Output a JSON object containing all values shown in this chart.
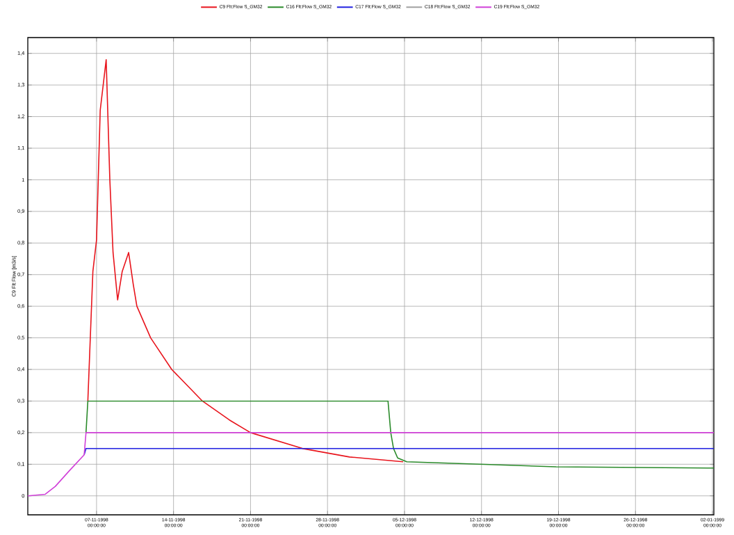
{
  "chart_data": {
    "type": "line",
    "ylabel": "C9 Flt:Flow [m3/s]",
    "xlim": [
      "1998-10-31T18:00",
      "1999-01-02T03:00"
    ],
    "xticks": [
      {
        "value": "1998-11-07",
        "label": "07-11-1998 00:00:00"
      },
      {
        "value": "1998-11-14",
        "label": "14-11-1998 00:00:00"
      },
      {
        "value": "1998-11-21",
        "label": "21-11-1998 00:00:00"
      },
      {
        "value": "1998-11-28",
        "label": "28-11-1998 00:00:00"
      },
      {
        "value": "1998-12-05",
        "label": "05-12-1998 00:00:00"
      },
      {
        "value": "1998-12-12",
        "label": "12-12-1998 00:00:00"
      },
      {
        "value": "1998-12-19",
        "label": "19-12-1998 00:00:00"
      },
      {
        "value": "1998-12-26",
        "label": "26-12-1998 00:00:00"
      },
      {
        "value": "1999-01-02",
        "label": "02-01-1999 00:00:00"
      }
    ],
    "ylim": [
      -0.06,
      1.45
    ],
    "yticks": [
      0,
      {
        "value": 0.1,
        "label": "0,1"
      },
      {
        "value": 0.2,
        "label": "0,2"
      },
      {
        "value": 0.3,
        "label": "0,3"
      },
      {
        "value": 0.4,
        "label": "0,4"
      },
      {
        "value": 0.5,
        "label": "0,5"
      },
      {
        "value": 0.6,
        "label": "0,6"
      },
      {
        "value": 0.7,
        "label": "0,7"
      },
      {
        "value": 0.8,
        "label": "0,8"
      },
      {
        "value": 0.9,
        "label": "0,9"
      },
      1,
      {
        "value": 1.1,
        "label": "1,1"
      },
      {
        "value": 1.2,
        "label": "1,2"
      },
      {
        "value": 1.3,
        "label": "1,3"
      },
      {
        "value": 1.4,
        "label": "1,4"
      }
    ],
    "grid": true,
    "legend": "top",
    "series": [
      {
        "name": "C9 Flt:Flow S_GM32",
        "color": "#e8141c",
        "x": [
          "1998-11-06T05:00",
          "1998-11-06T16:00",
          "1998-11-07T00:00",
          "1998-11-07T08:00",
          "1998-11-07T21:00",
          "1998-11-08T05:00",
          "1998-11-08T12:00",
          "1998-11-08T22:00",
          "1998-11-09T08:00",
          "1998-11-09T22:00",
          "1998-11-10T08:00",
          "1998-11-10T16:00",
          "1998-11-11T22:00",
          "1998-11-13T20:00",
          "1998-11-16T15:00",
          "1998-11-19T02:00",
          "1998-11-21T00:00",
          "1998-11-25T17:00",
          "1998-11-30T00:00",
          "1998-12-04T21:00"
        ],
        "values": [
          0.3,
          0.71,
          0.81,
          1.22,
          1.38,
          1.0,
          0.77,
          0.62,
          0.71,
          0.77,
          0.67,
          0.6,
          0.5,
          0.4,
          0.3,
          0.24,
          0.2,
          0.15,
          0.123,
          0.108
        ]
      },
      {
        "name": "C16 Flt:Flow S_GM32",
        "color": "#2a8a2a",
        "x": [
          "1998-11-06T01:00",
          "1998-11-06T05:00",
          "1998-12-03T12:00",
          "1998-12-03T18:00",
          "1998-12-04T00:00",
          "1998-12-04T09:00",
          "1998-12-05T05:00",
          "1998-12-11T20:00",
          "1998-12-18T19:00",
          "1999-01-02T03:00"
        ],
        "values": [
          0.2,
          0.3,
          0.3,
          0.2,
          0.15,
          0.12,
          0.108,
          0.1,
          0.092,
          0.088
        ]
      },
      {
        "name": "C17 Flt:Flow S_GM32",
        "color": "#2020e0",
        "x": [
          "1998-11-05T21:00",
          "1998-11-06T01:00",
          "1999-01-02T03:00"
        ],
        "values": [
          0.13,
          0.15,
          0.15
        ]
      },
      {
        "name": "C18 Flt:Flow S_GM32",
        "color": "#a0a0a0",
        "values": [
          null
        ]
      },
      {
        "name": "C19 Flt:Flow S_GM32",
        "color": "#d040d8",
        "x": [
          "1998-10-31T18:00",
          "1998-11-02T08:00",
          "1998-11-03T06:00",
          "1998-11-04T13:00",
          "1998-11-05T21:00",
          "1998-11-06T01:00",
          "1999-01-02T03:00"
        ],
        "values": [
          0,
          0.005,
          0.03,
          0.08,
          0.13,
          0.2,
          0.2
        ]
      }
    ]
  }
}
